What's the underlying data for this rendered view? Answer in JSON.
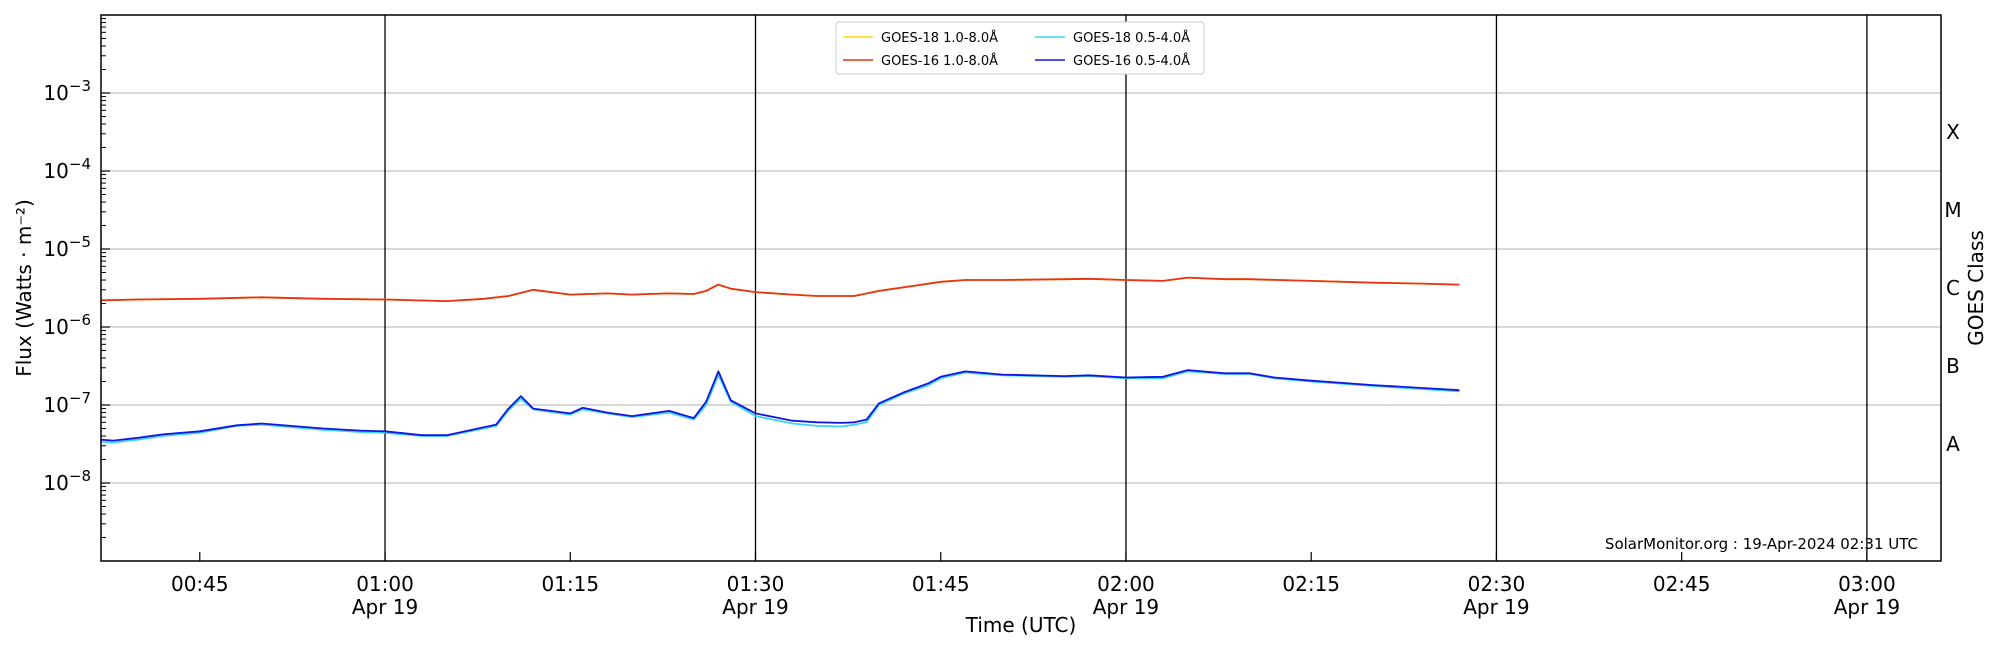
{
  "chart_data": {
    "type": "line",
    "title": "",
    "xlabel": "Time (UTC)",
    "ylabel": "Flux (Watts · m⁻²)",
    "right_label": "GOES Class",
    "credit": "SolarMonitor.org : 19-Apr-2024 02:31 UTC",
    "y_scale": "log",
    "ylim": [
      1e-09,
      0.01
    ],
    "xlim": [
      "00:37",
      "03:06"
    ],
    "grid": true,
    "legend_position": "top-center",
    "y_ticks": [
      {
        "value": 1e-08,
        "base": "10",
        "exp": "−8"
      },
      {
        "value": 1e-07,
        "base": "10",
        "exp": "−7"
      },
      {
        "value": 1e-06,
        "base": "10",
        "exp": "−6"
      },
      {
        "value": 1e-05,
        "base": "10",
        "exp": "−5"
      },
      {
        "value": 0.0001,
        "base": "10",
        "exp": "−4"
      },
      {
        "value": 0.001,
        "base": "10",
        "exp": "−3"
      }
    ],
    "goes_classes": [
      {
        "label": "A",
        "value": 3.16e-08
      },
      {
        "label": "B",
        "value": 3.16e-07
      },
      {
        "label": "C",
        "value": 3.16e-06
      },
      {
        "label": "M",
        "value": 3.16e-05
      },
      {
        "label": "X",
        "value": 0.000316
      }
    ],
    "x_ticks": [
      {
        "time": "00:45",
        "label": "00:45",
        "date": ""
      },
      {
        "time": "01:00",
        "label": "01:00",
        "date": "Apr 19"
      },
      {
        "time": "01:15",
        "label": "01:15",
        "date": ""
      },
      {
        "time": "01:30",
        "label": "01:30",
        "date": "Apr 19"
      },
      {
        "time": "01:45",
        "label": "01:45",
        "date": ""
      },
      {
        "time": "02:00",
        "label": "02:00",
        "date": "Apr 19"
      },
      {
        "time": "02:15",
        "label": "02:15",
        "date": ""
      },
      {
        "time": "02:30",
        "label": "02:30",
        "date": "Apr 19"
      },
      {
        "time": "02:45",
        "label": "02:45",
        "date": ""
      },
      {
        "time": "03:00",
        "label": "03:00",
        "date": "Apr 19"
      }
    ],
    "vertical_markers": [
      "01:00",
      "01:30",
      "02:00",
      "02:30",
      "03:00"
    ],
    "series": [
      {
        "name": "GOES-18 1.0-8.0Å",
        "color": "#ffd700",
        "x": [
          "00:37",
          "00:40",
          "00:45",
          "00:50",
          "00:55",
          "01:00",
          "01:05",
          "01:08",
          "01:10",
          "01:12",
          "01:15",
          "01:18",
          "01:20",
          "01:23",
          "01:25",
          "01:26",
          "01:27",
          "01:28",
          "01:30",
          "01:33",
          "01:35",
          "01:38",
          "01:40",
          "01:43",
          "01:45",
          "01:47",
          "01:50",
          "01:55",
          "01:57",
          "02:00",
          "02:03",
          "02:05",
          "02:08",
          "02:10",
          "02:15",
          "02:20",
          "02:24",
          "02:27"
        ],
        "y": [
          2.2e-06,
          2.25e-06,
          2.3e-06,
          2.4e-06,
          2.3e-06,
          2.25e-06,
          2.15e-06,
          2.3e-06,
          2.5e-06,
          3e-06,
          2.6e-06,
          2.7e-06,
          2.6e-06,
          2.7e-06,
          2.65e-06,
          2.9e-06,
          3.5e-06,
          3.1e-06,
          2.8e-06,
          2.6e-06,
          2.5e-06,
          2.5e-06,
          2.9e-06,
          3.4e-06,
          3.8e-06,
          4e-06,
          4e-06,
          4.1e-06,
          4.15e-06,
          4e-06,
          3.9e-06,
          4.3e-06,
          4.1e-06,
          4.1e-06,
          3.9e-06,
          3.7e-06,
          3.6e-06,
          3.5e-06
        ]
      },
      {
        "name": "GOES-16 1.0-8.0Å",
        "color": "#e8331a",
        "x": [
          "00:37",
          "00:40",
          "00:45",
          "00:50",
          "00:55",
          "01:00",
          "01:05",
          "01:08",
          "01:10",
          "01:12",
          "01:15",
          "01:18",
          "01:20",
          "01:23",
          "01:25",
          "01:26",
          "01:27",
          "01:28",
          "01:30",
          "01:33",
          "01:35",
          "01:38",
          "01:40",
          "01:43",
          "01:45",
          "01:47",
          "01:50",
          "01:55",
          "01:57",
          "02:00",
          "02:03",
          "02:05",
          "02:08",
          "02:10",
          "02:15",
          "02:20",
          "02:24",
          "02:27"
        ],
        "y": [
          2.2e-06,
          2.25e-06,
          2.3e-06,
          2.4e-06,
          2.3e-06,
          2.25e-06,
          2.15e-06,
          2.3e-06,
          2.5e-06,
          3e-06,
          2.6e-06,
          2.7e-06,
          2.6e-06,
          2.7e-06,
          2.65e-06,
          2.9e-06,
          3.5e-06,
          3.1e-06,
          2.8e-06,
          2.6e-06,
          2.5e-06,
          2.5e-06,
          2.9e-06,
          3.4e-06,
          3.8e-06,
          4e-06,
          4e-06,
          4.1e-06,
          4.15e-06,
          4e-06,
          3.9e-06,
          4.3e-06,
          4.1e-06,
          4.1e-06,
          3.9e-06,
          3.7e-06,
          3.6e-06,
          3.5e-06
        ]
      },
      {
        "name": "GOES-18 0.5-4.0Å",
        "color": "#38d6f0",
        "x": [
          "00:37",
          "00:38",
          "00:40",
          "00:42",
          "00:45",
          "00:48",
          "00:50",
          "00:55",
          "00:58",
          "01:00",
          "01:03",
          "01:05",
          "01:08",
          "01:09",
          "01:10",
          "01:11",
          "01:12",
          "01:15",
          "01:16",
          "01:18",
          "01:20",
          "01:23",
          "01:25",
          "01:26",
          "01:27",
          "01:28",
          "01:30",
          "01:33",
          "01:35",
          "01:37",
          "01:38",
          "01:39",
          "01:40",
          "01:42",
          "01:44",
          "01:45",
          "01:47",
          "01:50",
          "01:55",
          "01:57",
          "02:00",
          "02:03",
          "02:05",
          "02:08",
          "02:10",
          "02:12",
          "02:15",
          "02:20",
          "02:24",
          "02:27"
        ],
        "y": [
          3.4e-08,
          3.3e-08,
          3.6e-08,
          4e-08,
          4.4e-08,
          5.4e-08,
          5.6e-08,
          4.8e-08,
          4.5e-08,
          4.4e-08,
          4e-08,
          4e-08,
          5e-08,
          5.4e-08,
          8.5e-08,
          1.2e-07,
          8.8e-08,
          7.5e-08,
          8.8e-08,
          7.8e-08,
          7e-08,
          8e-08,
          6.5e-08,
          1e-07,
          2.4e-07,
          1.1e-07,
          7.2e-08,
          5.8e-08,
          5.4e-08,
          5.3e-08,
          5.6e-08,
          6e-08,
          1e-07,
          1.4e-07,
          1.8e-07,
          2.2e-07,
          2.6e-07,
          2.4e-07,
          2.3e-07,
          2.35e-07,
          2.2e-07,
          2.2e-07,
          2.7e-07,
          2.5e-07,
          2.5e-07,
          2.2e-07,
          2e-07,
          1.75e-07,
          1.6e-07,
          1.5e-07
        ]
      },
      {
        "name": "GOES-16 0.5-4.0Å",
        "color": "#1414e6",
        "x": [
          "00:37",
          "00:38",
          "00:40",
          "00:42",
          "00:45",
          "00:48",
          "00:50",
          "00:55",
          "00:58",
          "01:00",
          "01:03",
          "01:05",
          "01:08",
          "01:09",
          "01:10",
          "01:11",
          "01:12",
          "01:15",
          "01:16",
          "01:18",
          "01:20",
          "01:23",
          "01:25",
          "01:26",
          "01:27",
          "01:28",
          "01:30",
          "01:33",
          "01:35",
          "01:37",
          "01:38",
          "01:39",
          "01:40",
          "01:42",
          "01:44",
          "01:45",
          "01:47",
          "01:50",
          "01:55",
          "01:57",
          "02:00",
          "02:03",
          "02:05",
          "02:08",
          "02:10",
          "02:12",
          "02:15",
          "02:20",
          "02:24",
          "02:27"
        ],
        "y": [
          3.6e-08,
          3.5e-08,
          3.8e-08,
          4.2e-08,
          4.6e-08,
          5.5e-08,
          5.8e-08,
          5e-08,
          4.7e-08,
          4.6e-08,
          4.1e-08,
          4.1e-08,
          5.2e-08,
          5.6e-08,
          9e-08,
          1.3e-07,
          9e-08,
          7.8e-08,
          9.2e-08,
          8e-08,
          7.2e-08,
          8.4e-08,
          6.8e-08,
          1.1e-07,
          2.7e-07,
          1.15e-07,
          7.8e-08,
          6.3e-08,
          6e-08,
          5.9e-08,
          6e-08,
          6.5e-08,
          1.05e-07,
          1.45e-07,
          1.9e-07,
          2.3e-07,
          2.7e-07,
          2.45e-07,
          2.35e-07,
          2.4e-07,
          2.25e-07,
          2.3e-07,
          2.8e-07,
          2.55e-07,
          2.55e-07,
          2.25e-07,
          2.05e-07,
          1.8e-07,
          1.65e-07,
          1.55e-07
        ]
      }
    ]
  }
}
